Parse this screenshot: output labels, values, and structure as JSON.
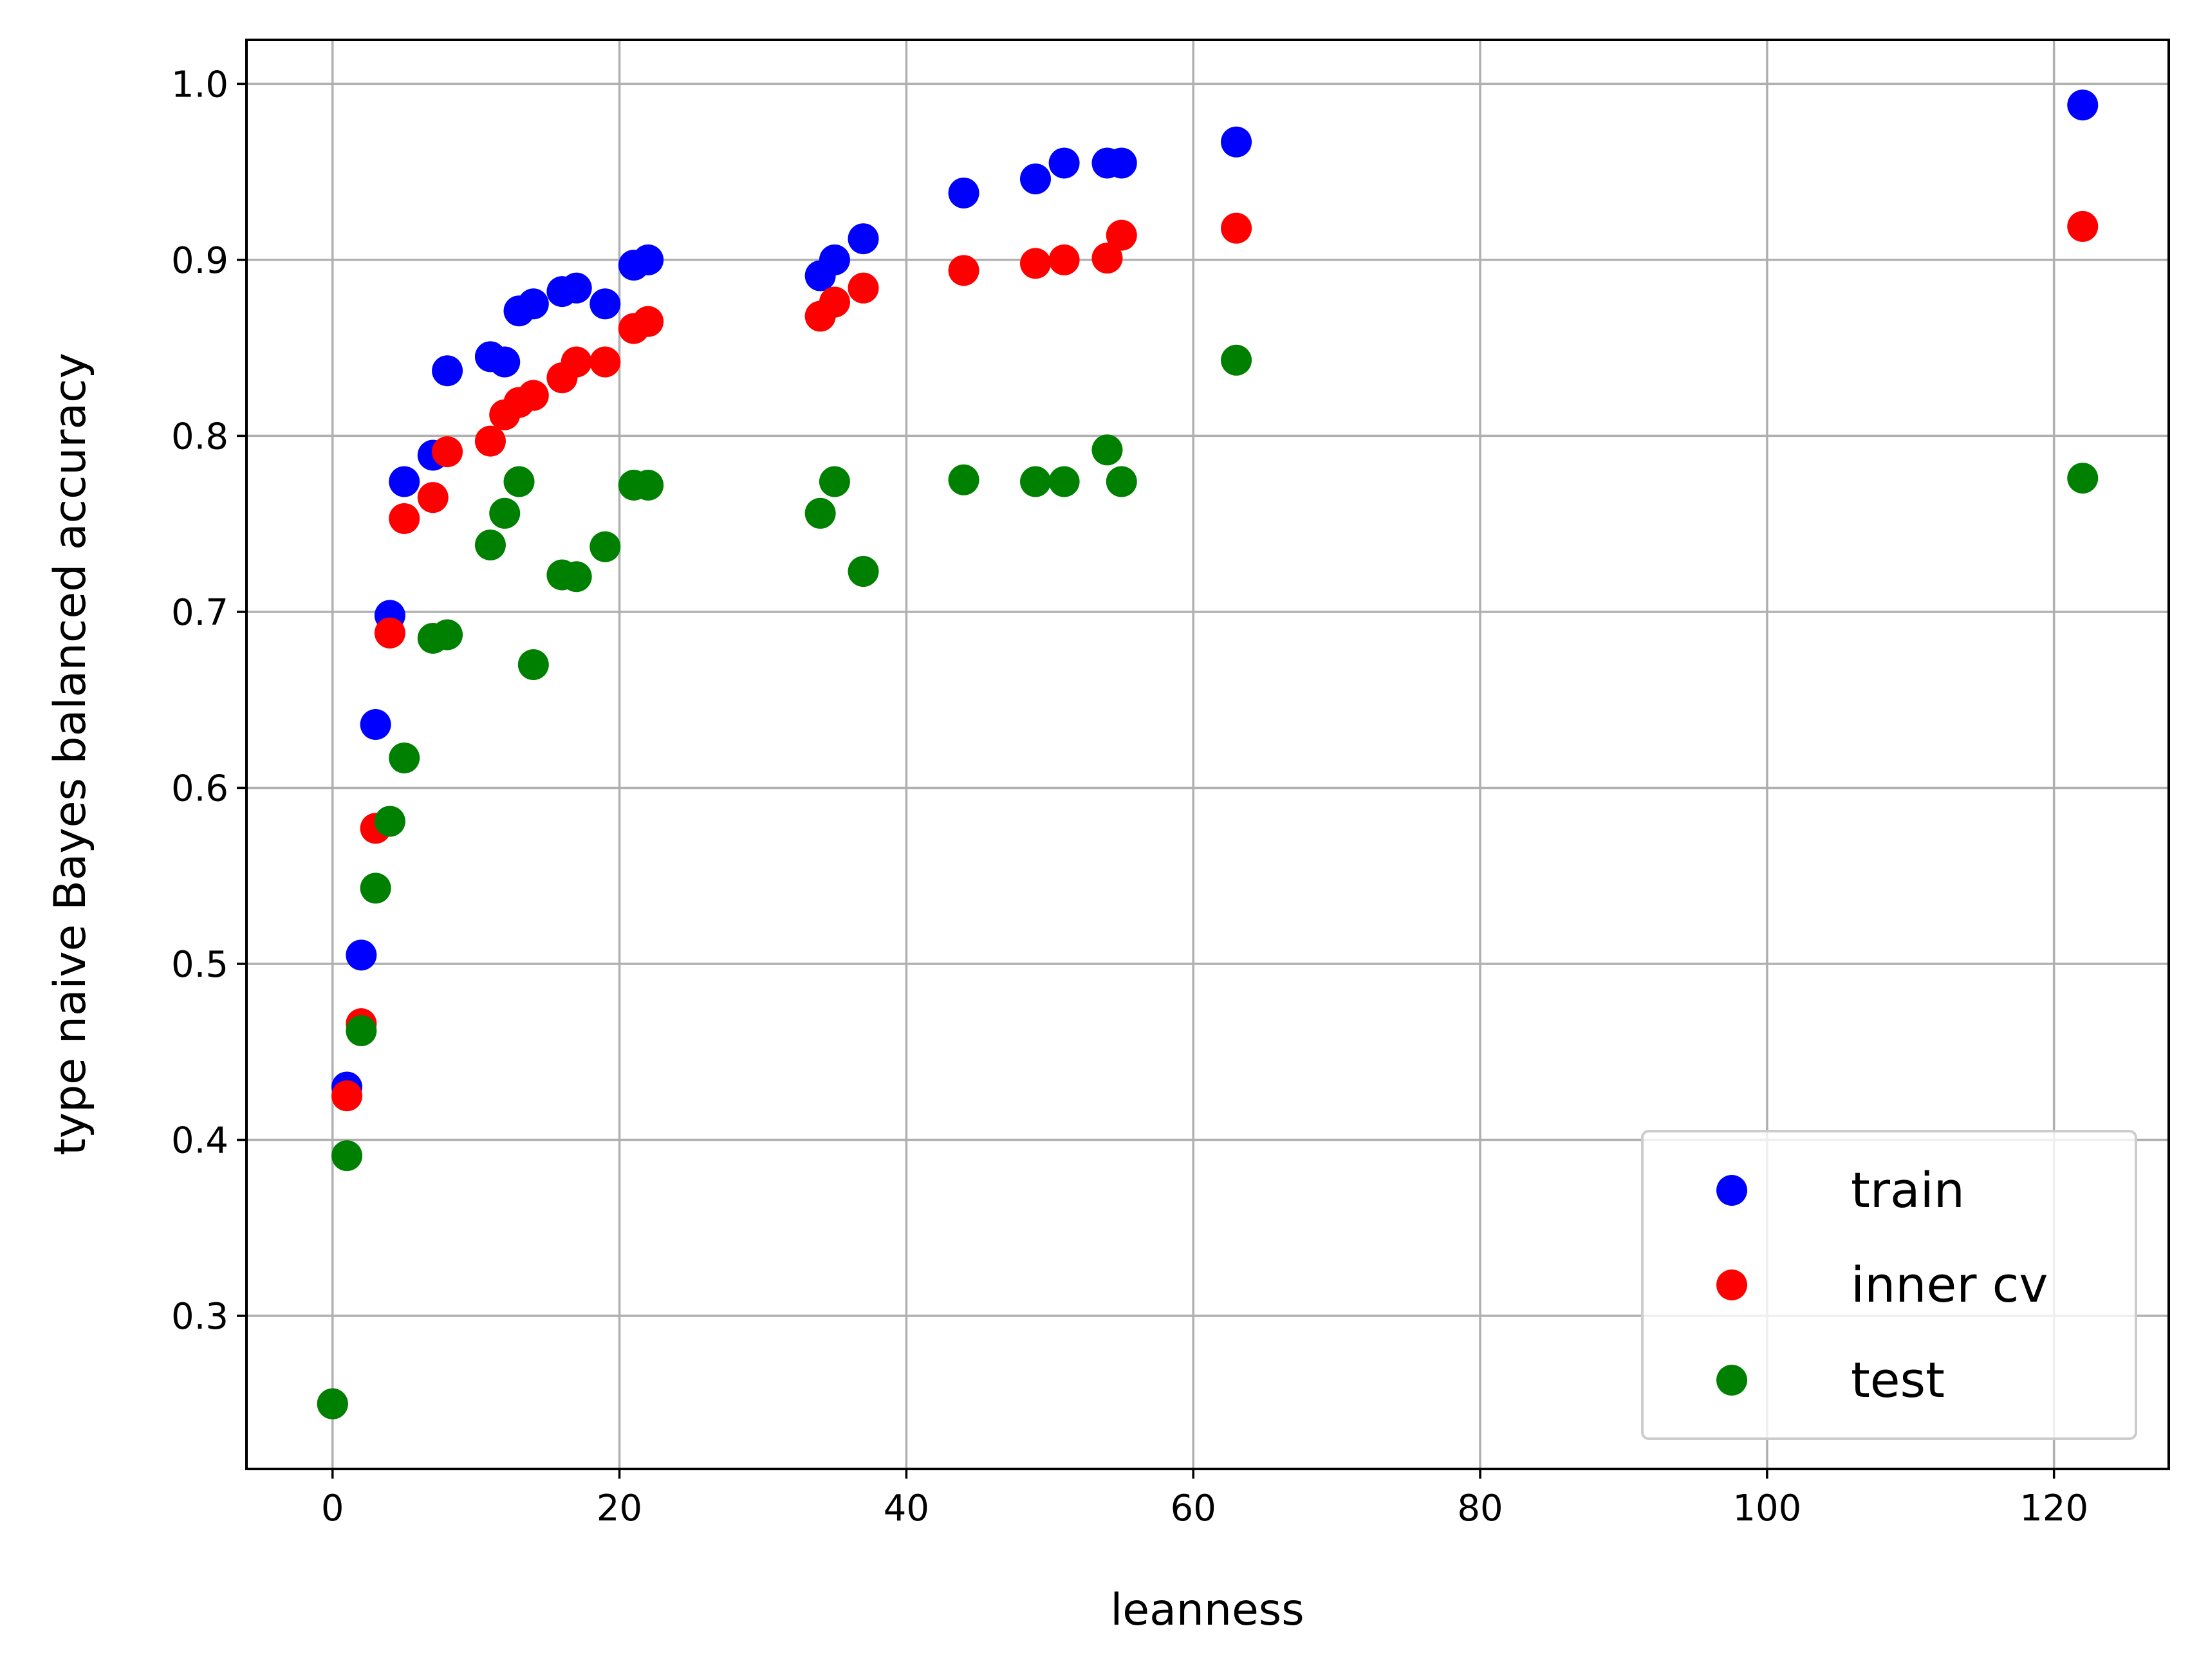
{
  "chart_data": {
    "type": "scatter",
    "xlabel": "leanness",
    "ylabel": "type naive Bayes balanced accuracy",
    "xlim": [
      -6,
      128
    ],
    "ylim": [
      0.213,
      1.025
    ],
    "xticks": [
      0,
      20,
      40,
      60,
      80,
      100,
      120
    ],
    "xtick_labels": [
      "0",
      "20",
      "40",
      "60",
      "80",
      "100",
      "120"
    ],
    "yticks": [
      0.3,
      0.4,
      0.5,
      0.6,
      0.7,
      0.8,
      0.9,
      1.0
    ],
    "ytick_labels": [
      "0.3",
      "0.4",
      "0.5",
      "0.6",
      "0.7",
      "0.8",
      "0.9",
      "1.0"
    ],
    "grid": true,
    "legend_position": "lower-right",
    "series": [
      {
        "name": "train",
        "color": "#0000ff",
        "points": [
          [
            0,
            0.25
          ],
          [
            1,
            0.43
          ],
          [
            2,
            0.505
          ],
          [
            3,
            0.636
          ],
          [
            4,
            0.698
          ],
          [
            5,
            0.774
          ],
          [
            7,
            0.789
          ],
          [
            8,
            0.837
          ],
          [
            11,
            0.845
          ],
          [
            12,
            0.842
          ],
          [
            13,
            0.871
          ],
          [
            14,
            0.875
          ],
          [
            16,
            0.882
          ],
          [
            17,
            0.884
          ],
          [
            19,
            0.875
          ],
          [
            21,
            0.897
          ],
          [
            22,
            0.9
          ],
          [
            34,
            0.891
          ],
          [
            35,
            0.9
          ],
          [
            37,
            0.912
          ],
          [
            44,
            0.938
          ],
          [
            49,
            0.946
          ],
          [
            51,
            0.955
          ],
          [
            54,
            0.955
          ],
          [
            55,
            0.955
          ],
          [
            63,
            0.967
          ],
          [
            122,
            0.988
          ]
        ]
      },
      {
        "name": "inner cv",
        "color": "#ff0000",
        "points": [
          [
            0,
            0.25
          ],
          [
            1,
            0.425
          ],
          [
            2,
            0.466
          ],
          [
            3,
            0.577
          ],
          [
            4,
            0.688
          ],
          [
            5,
            0.753
          ],
          [
            7,
            0.765
          ],
          [
            8,
            0.791
          ],
          [
            11,
            0.797
          ],
          [
            12,
            0.812
          ],
          [
            13,
            0.819
          ],
          [
            14,
            0.823
          ],
          [
            16,
            0.833
          ],
          [
            17,
            0.842
          ],
          [
            19,
            0.842
          ],
          [
            21,
            0.861
          ],
          [
            22,
            0.865
          ],
          [
            34,
            0.868
          ],
          [
            35,
            0.876
          ],
          [
            37,
            0.884
          ],
          [
            44,
            0.894
          ],
          [
            49,
            0.898
          ],
          [
            51,
            0.9
          ],
          [
            54,
            0.901
          ],
          [
            55,
            0.914
          ],
          [
            63,
            0.918
          ],
          [
            122,
            0.919
          ]
        ]
      },
      {
        "name": "test",
        "color": "#008000",
        "points": [
          [
            0,
            0.25
          ],
          [
            1,
            0.391
          ],
          [
            2,
            0.462
          ],
          [
            3,
            0.543
          ],
          [
            4,
            0.581
          ],
          [
            5,
            0.617
          ],
          [
            7,
            0.685
          ],
          [
            8,
            0.687
          ],
          [
            11,
            0.738
          ],
          [
            12,
            0.756
          ],
          [
            13,
            0.774
          ],
          [
            14,
            0.67
          ],
          [
            16,
            0.721
          ],
          [
            17,
            0.72
          ],
          [
            19,
            0.737
          ],
          [
            21,
            0.772
          ],
          [
            22,
            0.772
          ],
          [
            34,
            0.756
          ],
          [
            35,
            0.774
          ],
          [
            37,
            0.723
          ],
          [
            44,
            0.775
          ],
          [
            49,
            0.774
          ],
          [
            51,
            0.774
          ],
          [
            54,
            0.792
          ],
          [
            55,
            0.774
          ],
          [
            63,
            0.843
          ],
          [
            122,
            0.776
          ]
        ]
      }
    ]
  }
}
